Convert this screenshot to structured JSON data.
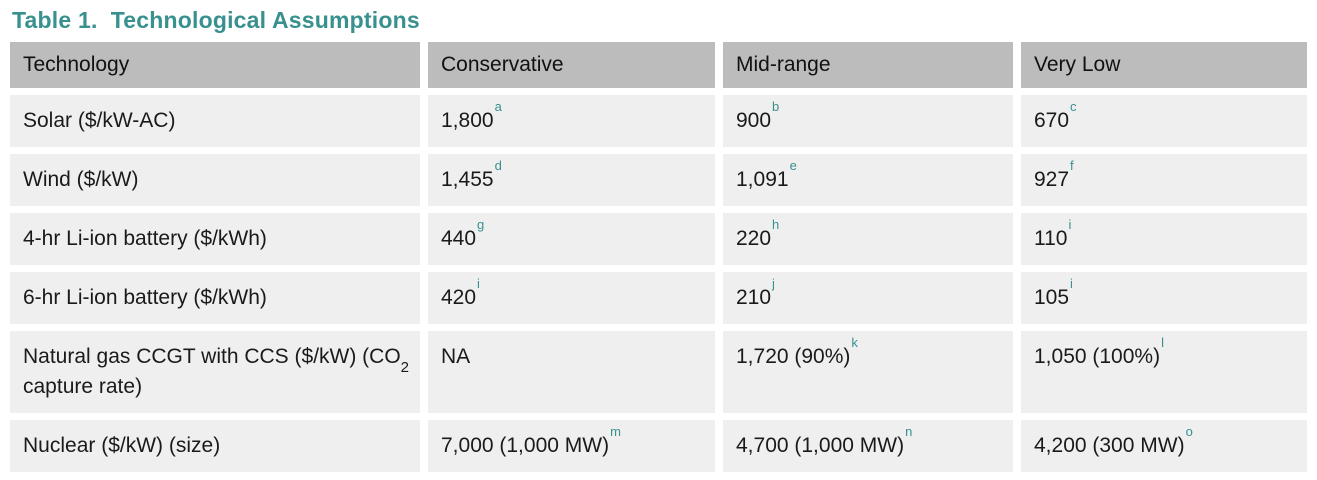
{
  "title": "Table 1.  Technological Assumptions",
  "colors": {
    "accent": "#38908f",
    "header_bg": "#bcbcbc",
    "row_bg": "#efefef",
    "text": "#1a1a1a"
  },
  "table": {
    "headers": [
      "Technology",
      "Conservative",
      "Mid-range",
      "Very Low"
    ],
    "rows": [
      {
        "cells": [
          [
            {
              "t": "Solar ($/kW-AC)"
            }
          ],
          [
            {
              "t": "1,800"
            },
            {
              "sup": "a"
            }
          ],
          [
            {
              "t": "900"
            },
            {
              "sup": "b"
            }
          ],
          [
            {
              "t": "670"
            },
            {
              "sup": "c"
            }
          ]
        ]
      },
      {
        "cells": [
          [
            {
              "t": "Wind ($/kW)"
            }
          ],
          [
            {
              "t": "1,455"
            },
            {
              "sup": "d"
            }
          ],
          [
            {
              "t": "1,091"
            },
            {
              "sup": "e"
            }
          ],
          [
            {
              "t": "927"
            },
            {
              "sup": "f"
            }
          ]
        ]
      },
      {
        "cells": [
          [
            {
              "t": "4-hr Li-ion battery ($/kWh)"
            }
          ],
          [
            {
              "t": "440"
            },
            {
              "sup": "g"
            }
          ],
          [
            {
              "t": "220"
            },
            {
              "sup": "h"
            }
          ],
          [
            {
              "t": "110"
            },
            {
              "sup": "i"
            }
          ]
        ]
      },
      {
        "cells": [
          [
            {
              "t": "6-hr Li-ion battery ($/kWh)"
            }
          ],
          [
            {
              "t": "420"
            },
            {
              "sup": "i"
            }
          ],
          [
            {
              "t": "210"
            },
            {
              "sup": "j"
            }
          ],
          [
            {
              "t": "105"
            },
            {
              "sup": "i"
            }
          ]
        ]
      },
      {
        "cells": [
          [
            {
              "t": "Natural gas CCGT with CCS ($/kW) (CO"
            },
            {
              "sub": "2"
            },
            {
              "t": " capture rate)"
            }
          ],
          [
            {
              "t": "NA"
            }
          ],
          [
            {
              "t": "1,720 (90%)"
            },
            {
              "sup": "k"
            }
          ],
          [
            {
              "t": "1,050 (100%)"
            },
            {
              "sup": "l"
            }
          ]
        ]
      },
      {
        "cells": [
          [
            {
              "t": "Nuclear ($/kW) (size)"
            }
          ],
          [
            {
              "t": "7,000 (1,000 MW)"
            },
            {
              "sup": "m"
            }
          ],
          [
            {
              "t": "4,700 (1,000 MW)"
            },
            {
              "sup": "n"
            }
          ],
          [
            {
              "t": "4,200 (300 MW)"
            },
            {
              "sup": "o"
            }
          ]
        ]
      }
    ]
  }
}
